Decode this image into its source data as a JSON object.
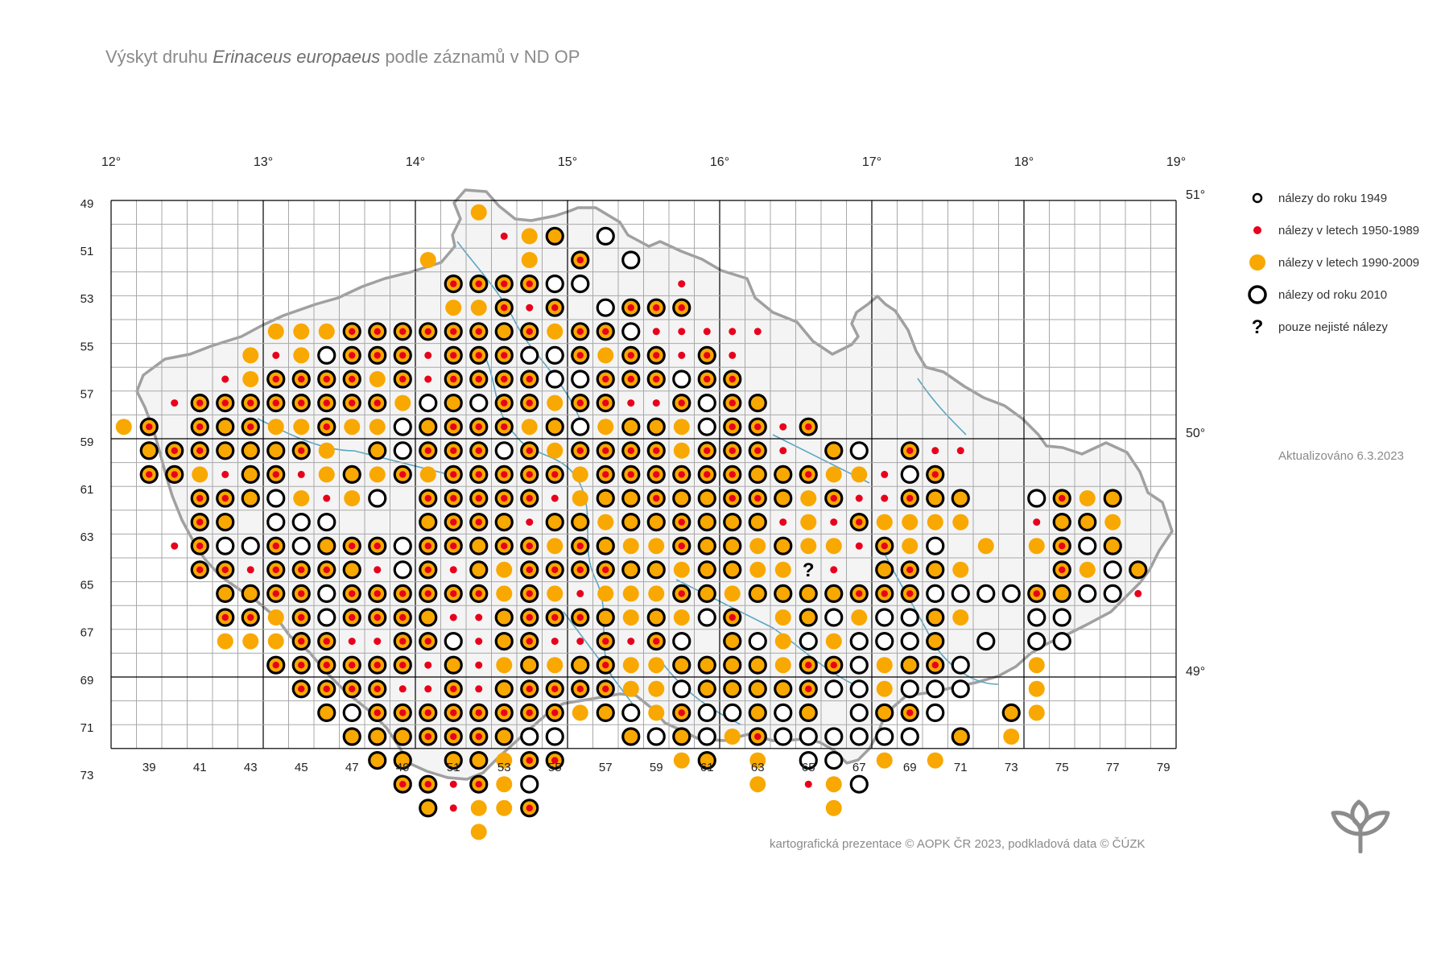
{
  "title": {
    "prefix": "Výskyt druhu ",
    "species": "Erinaceus europaeus",
    "suffix": " podle záznamů v ND OP"
  },
  "legend": [
    {
      "symbol": "pre1950",
      "label": "nálezy do roku 1949"
    },
    {
      "symbol": "y1950",
      "label": "nálezy v letech 1950-1989"
    },
    {
      "symbol": "y1990",
      "label": "nálezy v letech 1990-2009"
    },
    {
      "symbol": "y2010",
      "label": "nálezy od roku 2010"
    },
    {
      "symbol": "uncertain",
      "label": "pouze nejisté nálezy"
    }
  ],
  "updated": "Aktualizováno 6.3.2023",
  "credit": "kartografická prezentace © AOPK ČR 2023, podkladová data © ČÚZK",
  "colors": {
    "y1990": "#f8a800",
    "y1950": "#e8001c",
    "y2010": "#000000",
    "grid": "#a8a8a8",
    "major_grid": "#000000",
    "border": "#a0a0a0",
    "rivers": "#5aa7c4",
    "logo": "#8c8c8c"
  },
  "map": {
    "top_labels": [
      "12°",
      "13°",
      "14°",
      "15°",
      "16°",
      "17°",
      "18°",
      "19°"
    ],
    "right_labels": [
      "51°",
      "50°",
      "49°"
    ],
    "column_labels": [
      "39",
      "41",
      "43",
      "45",
      "47",
      "49",
      "51",
      "53",
      "55",
      "57",
      "59",
      "61",
      "63",
      "65",
      "67",
      "69",
      "71",
      "73",
      "75",
      "77",
      "79"
    ],
    "row_labels": [
      "49",
      "51",
      "53",
      "55",
      "57",
      "59",
      "61",
      "63",
      "65",
      "67",
      "69",
      "71",
      "73"
    ],
    "uncertain_mark": "?",
    "records": [
      "50,51,y1990",
      "52,49,y1990",
      "53,50,y1950",
      "54,50,y1990",
      "55,50,full",
      "54,51,y1990",
      "56,51,ring-red",
      "57,50,ring-white",
      "56,52,ring-white",
      "55,52,ring-white",
      "58,51,ring-white",
      "54,52,ring-red",
      "53,52,ring-red",
      "52,52,ring-red",
      "51,52,ring-red",
      "51,53,y1990",
      "52,53,y1990",
      "53,53,ring-red",
      "54,53,y1950",
      "55,53,ring-red",
      "57,53,ring-white",
      "58,53,ring-red",
      "59,53,ring-red",
      "60,53,ring-red",
      "60,52,y1950",
      "44,54,y1990",
      "45,54,y1990",
      "46,54,y1990",
      "47,54,ring-red",
      "48,54,ring-red",
      "49,54,ring-red",
      "50,54,ring-red",
      "51,54,ring-red",
      "52,54,ring-red",
      "53,54,full",
      "54,54,ring-red",
      "55,54,y1990",
      "56,54,ring-red",
      "57,54,ring-red",
      "58,54,ring-white",
      "59,54,y1950",
      "60,54,y1950",
      "61,54,y1950",
      "62,54,y1950",
      "63,54,y1950",
      "43,55,y1990",
      "44,55,y1950",
      "45,55,y1990",
      "46,55,ring-white",
      "47,55,ring-red",
      "48,55,ring-red",
      "49,55,ring-red",
      "50,55,y1950",
      "51,55,ring-red",
      "52,55,ring-red",
      "53,55,ring-red",
      "54,55,ring-white",
      "55,55,ring-white",
      "56,55,ring-red",
      "57,55,y1990",
      "58,55,ring-red",
      "59,55,ring-red",
      "60,55,y1950",
      "61,55,ring-red",
      "62,55,y1950",
      "42,56,y1950",
      "43,56,y1990",
      "44,56,ring-red",
      "45,56,ring-red",
      "46,56,ring-red",
      "47,56,ring-red",
      "48,56,y1990",
      "49,56,ring-red",
      "50,56,y1950",
      "51,56,ring-red",
      "52,56,ring-red",
      "53,56,ring-red",
      "54,56,ring-red",
      "55,56,ring-white",
      "56,56,ring-white",
      "57,56,ring-red",
      "58,56,ring-red",
      "59,56,ring-red",
      "60,56,ring-white",
      "61,56,ring-red",
      "62,56,ring-red",
      "40,57,y1950",
      "41,57,ring-red",
      "42,57,ring-red",
      "43,57,ring-red",
      "44,57,ring-red",
      "45,57,ring-red",
      "46,57,ring-red",
      "47,57,ring-red",
      "48,57,ring-red",
      "49,57,y1990",
      "50,57,ring-white",
      "51,57,full",
      "52,57,ring-white",
      "53,57,ring-red",
      "54,57,ring-red",
      "55,57,y1990",
      "56,57,ring-red",
      "57,57,ring-red",
      "58,57,y1950",
      "59,57,y1950",
      "60,57,ring-red",
      "61,57,ring-white",
      "62,57,ring-red",
      "63,57,full",
      "38,58,y1990",
      "39,58,ring-red",
      "41,58,ring-red",
      "42,58,full",
      "43,58,ring-red",
      "44,58,y1990",
      "45,58,y1990",
      "46,58,ring-red",
      "47,58,y1990",
      "48,58,y1990",
      "49,58,ring-white",
      "50,58,full",
      "51,58,ring-red",
      "52,58,ring-red",
      "53,58,ring-red",
      "54,58,y1990",
      "55,58,full",
      "56,58,ring-white",
      "57,58,y1990",
      "58,58,full",
      "59,58,full",
      "60,58,y1990",
      "61,58,ring-white",
      "62,58,ring-red",
      "63,58,ring-red",
      "64,58,y1950",
      "65,58,ring-red",
      "39,59,full",
      "40,59,ring-red",
      "41,59,ring-red",
      "42,59,full",
      "43,59,full",
      "44,59,full",
      "45,59,ring-red",
      "46,59,y1990",
      "48,59,full",
      "49,59,ring-white",
      "50,59,ring-red",
      "51,59,ring-red",
      "52,59,ring-red",
      "53,59,ring-white",
      "54,59,ring-red",
      "55,59,y1990",
      "56,59,ring-red",
      "57,59,ring-red",
      "58,59,ring-red",
      "59,59,ring-red",
      "60,59,y1990",
      "61,59,ring-red",
      "62,59,ring-red",
      "63,59,ring-red",
      "64,59,y1950",
      "66,59,full",
      "67,59,ring-white",
      "69,59,ring-red",
      "70,59,y1950",
      "71,59,y1950",
      "39,60,ring-red",
      "40,60,ring-red",
      "41,60,y1990",
      "42,60,y1950",
      "43,60,full",
      "44,60,ring-red",
      "45,60,y1950",
      "46,60,y1990",
      "47,60,full",
      "48,60,y1990",
      "49,60,ring-red",
      "50,60,y1990",
      "51,60,ring-red",
      "52,60,ring-red",
      "53,60,ring-red",
      "54,60,ring-red",
      "55,60,ring-red",
      "56,60,y1990",
      "57,60,ring-red",
      "58,60,ring-red",
      "59,60,ring-red",
      "60,60,ring-red",
      "61,60,ring-red",
      "62,60,ring-red",
      "63,60,full",
      "64,60,full",
      "65,60,ring-red",
      "66,60,y1990",
      "67,60,y1990",
      "68,60,y1950",
      "69,60,ring-white",
      "70,60,ring-red",
      "41,61,ring-red",
      "42,61,ring-red",
      "43,61,full",
      "44,61,ring-white",
      "45,61,y1990",
      "46,61,y1950",
      "47,61,y1990",
      "48,61,ring-white",
      "50,61,ring-red",
      "51,61,ring-red",
      "52,61,ring-red",
      "53,61,ring-red",
      "54,61,ring-red",
      "55,61,y1950",
      "56,61,y1990",
      "57,61,full",
      "58,61,full",
      "59,61,ring-red",
      "60,61,full",
      "61,61,full",
      "62,61,ring-red",
      "63,61,ring-red",
      "64,61,full",
      "65,61,y1990",
      "66,61,ring-red",
      "67,61,y1950",
      "68,61,y1950",
      "69,61,ring-red",
      "70,61,full",
      "71,61,full",
      "74,61,ring-white",
      "75,61,ring-red",
      "76,61,y1990",
      "77,61,full",
      "41,62,ring-red",
      "42,62,full",
      "44,62,ring-white",
      "45,62,ring-white",
      "46,62,ring-white",
      "50,62,full",
      "51,62,ring-red",
      "52,62,ring-red",
      "53,62,full",
      "54,62,y1950",
      "55,62,full",
      "56,62,full",
      "57,62,y1990",
      "58,62,full",
      "59,62,full",
      "60,62,ring-red",
      "61,62,full",
      "62,62,full",
      "63,62,full",
      "64,62,y1950",
      "65,62,y1990",
      "66,62,y1950",
      "67,62,ring-red",
      "68,62,y1990",
      "69,62,y1990",
      "70,62,y1990",
      "71,62,y1990",
      "74,62,y1950",
      "75,62,full",
      "76,62,full",
      "77,62,y1990",
      "40,63,y1950",
      "41,63,ring-red",
      "42,63,ring-white",
      "43,63,ring-white",
      "44,63,ring-red",
      "45,63,ring-white",
      "46,63,full",
      "47,63,ring-red",
      "48,63,ring-red",
      "49,63,ring-white",
      "50,63,ring-red",
      "51,63,ring-red",
      "52,63,full",
      "53,63,ring-red",
      "54,63,ring-red",
      "55,63,y1990",
      "56,63,ring-red",
      "57,63,full",
      "58,63,y1990",
      "59,63,y1990",
      "60,63,ring-red",
      "61,63,full",
      "62,63,full",
      "63,63,y1990",
      "64,63,full",
      "65,63,y1990",
      "66,63,y1990",
      "67,63,y1950",
      "68,63,ring-red",
      "69,63,y1990",
      "70,63,ring-white",
      "72,63,y1990",
      "74,63,y1990",
      "75,63,ring-red",
      "76,63,ring-white",
      "77,63,full",
      "41,64,ring-red",
      "42,64,ring-red",
      "43,64,y1950",
      "44,64,ring-red",
      "45,64,ring-red",
      "46,64,ring-red",
      "47,64,full",
      "48,64,y1950",
      "49,64,ring-white",
      "50,64,ring-red",
      "51,64,y1950",
      "52,64,full",
      "53,64,y1990",
      "54,64,ring-red",
      "55,64,ring-red",
      "56,64,ring-red",
      "57,64,ring-red",
      "58,64,full",
      "59,64,full",
      "60,64,y1990",
      "61,64,full",
      "62,64,full",
      "63,64,y1990",
      "64,64,y1990",
      "65,64,uncertain",
      "66,64,y1950",
      "68,64,full",
      "69,64,ring-red",
      "70,64,full",
      "71,64,y1990",
      "75,64,ring-red",
      "76,64,y1990",
      "77,64,ring-white",
      "78,64,full",
      "42,65,full",
      "43,65,full",
      "44,65,ring-red",
      "45,65,ring-red",
      "46,65,ring-white",
      "47,65,ring-red",
      "48,65,ring-red",
      "49,65,ring-red",
      "50,65,ring-red",
      "51,65,ring-red",
      "52,65,ring-red",
      "53,65,y1990",
      "54,65,ring-red",
      "55,65,y1990",
      "56,65,y1950",
      "57,65,y1990",
      "58,65,y1990",
      "59,65,y1990",
      "60,65,ring-red",
      "61,65,full",
      "62,65,y1990",
      "63,65,full",
      "64,65,full",
      "65,65,full",
      "66,65,full",
      "67,65,ring-red",
      "68,65,ring-red",
      "69,65,ring-red",
      "70,65,ring-white",
      "71,65,ring-white",
      "72,65,ring-white",
      "73,65,ring-white",
      "74,65,ring-red",
      "75,65,full",
      "76,65,ring-white",
      "77,65,ring-white",
      "78,65,y1950",
      "42,66,ring-red",
      "43,66,ring-red",
      "44,66,y1990",
      "45,66,ring-red",
      "46,66,ring-white",
      "47,66,ring-red",
      "48,66,ring-red",
      "49,66,ring-red",
      "50,66,full",
      "51,66,y1950",
      "52,66,y1950",
      "53,66,full",
      "54,66,ring-red",
      "55,66,ring-red",
      "56,66,ring-red",
      "57,66,full",
      "58,66,y1990",
      "59,66,full",
      "60,66,y1990",
      "61,66,ring-white",
      "62,66,ring-red",
      "64,66,y1990",
      "65,66,full",
      "66,66,ring-white",
      "67,66,y1990",
      "68,66,ring-white",
      "69,66,ring-white",
      "70,66,full",
      "71,66,y1990",
      "74,66,ring-white",
      "75,66,ring-white",
      "42,67,y1990",
      "43,67,y1990",
      "44,67,y1990",
      "45,67,ring-red",
      "46,67,ring-red",
      "47,67,y1950",
      "48,67,y1950",
      "49,67,ring-red",
      "50,67,ring-red",
      "51,67,ring-white",
      "52,67,y1950",
      "53,67,full",
      "54,67,ring-red",
      "55,67,y1950",
      "56,67,y1950",
      "57,67,ring-red",
      "58,67,y1950",
      "59,67,ring-red",
      "60,67,ring-white",
      "62,67,full",
      "63,67,ring-white",
      "64,67,y1990",
      "65,67,ring-white",
      "66,67,y1990",
      "67,67,ring-white",
      "68,67,ring-white",
      "69,67,ring-white",
      "70,67,full",
      "72,67,ring-white",
      "74,67,ring-white",
      "75,67,ring-white",
      "44,68,ring-red",
      "45,68,ring-red",
      "46,68,ring-red",
      "47,68,ring-red",
      "48,68,ring-red",
      "49,68,ring-red",
      "50,68,y1950",
      "51,68,full",
      "52,68,y1950",
      "53,68,y1990",
      "54,68,full",
      "55,68,y1990",
      "56,68,full",
      "57,68,ring-red",
      "58,68,y1990",
      "59,68,y1990",
      "60,68,full",
      "61,68,full",
      "62,68,full",
      "63,68,full",
      "64,68,y1990",
      "65,68,ring-red",
      "66,68,ring-red",
      "67,68,ring-white",
      "68,68,y1990",
      "69,68,full",
      "70,68,ring-red",
      "71,68,ring-white",
      "74,68,y1990",
      "45,69,ring-red",
      "46,69,ring-red",
      "47,69,ring-red",
      "48,69,ring-red",
      "49,69,y1950",
      "50,69,y1950",
      "51,69,ring-red",
      "52,69,y1950",
      "53,69,full",
      "54,69,ring-red",
      "55,69,ring-red",
      "56,69,ring-red",
      "57,69,ring-red",
      "58,69,y1990",
      "59,69,y1990",
      "60,69,ring-white",
      "61,69,full",
      "62,69,full",
      "63,69,full",
      "64,69,full",
      "65,69,ring-red",
      "66,69,ring-white",
      "67,69,ring-white",
      "68,69,y1990",
      "69,69,ring-white",
      "70,69,ring-white",
      "71,69,ring-white",
      "74,69,y1990",
      "46,70,full",
      "47,70,ring-white",
      "48,70,ring-red",
      "49,70,ring-red",
      "50,70,ring-red",
      "51,70,ring-red",
      "52,70,ring-red",
      "53,70,ring-red",
      "54,70,ring-red",
      "55,70,ring-red",
      "56,70,y1990",
      "57,70,full",
      "58,70,ring-white",
      "59,70,y1990",
      "60,70,ring-red",
      "61,70,ring-white",
      "62,70,ring-white",
      "63,70,full",
      "64,70,ring-white",
      "65,70,full",
      "67,70,ring-white",
      "68,70,full",
      "69,70,ring-red",
      "70,70,ring-white",
      "73,70,full",
      "74,70,y1990",
      "47,71,full",
      "48,71,full",
      "49,71,full",
      "50,71,ring-red",
      "51,71,ring-red",
      "52,71,ring-red",
      "53,71,full",
      "54,71,ring-white",
      "55,71,ring-white",
      "58,71,full",
      "59,71,ring-white",
      "60,71,full",
      "61,71,ring-white",
      "62,71,y1990",
      "63,71,ring-red",
      "64,71,ring-white",
      "65,71,ring-white",
      "66,71,ring-white",
      "67,71,ring-white",
      "68,71,ring-white",
      "69,71,ring-white",
      "71,71,full",
      "73,71,y1990",
      "48,72,full",
      "49,72,full",
      "51,72,full",
      "52,72,full",
      "53,72,y1990",
      "54,72,ring-red",
      "55,72,ring-red",
      "60,72,y1990",
      "61,72,full",
      "63,72,y1990",
      "65,72,ring-white",
      "66,72,ring-white",
      "68,72,y1990",
      "70,72,y1990",
      "49,73,ring-red",
      "50,73,ring-red",
      "51,73,y1950",
      "52,73,ring-red",
      "53,73,y1990",
      "54,73,ring-white",
      "63,73,y1990",
      "65,73,y1950",
      "66,73,y1990",
      "67,73,ring-white",
      "50,74,full",
      "51,74,y1950",
      "52,74,y1990",
      "53,74,y1990",
      "54,74,ring-red",
      "66,74,y1990",
      "52,75,y1990"
    ]
  }
}
